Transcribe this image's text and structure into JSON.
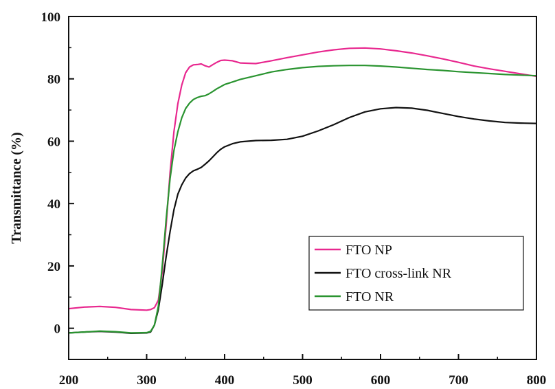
{
  "chart_data": {
    "type": "line",
    "title": "",
    "xlabel": "",
    "ylabel": "Transmittance (%)",
    "xlim": [
      200,
      800
    ],
    "ylim": [
      -10,
      100
    ],
    "xticks": [
      200,
      300,
      400,
      500,
      600,
      700,
      800
    ],
    "yticks": [
      0,
      20,
      40,
      60,
      80,
      100
    ],
    "grid": false,
    "legend_position": "bottom-right",
    "series": [
      {
        "name": "FTO NP",
        "color": "#e8288f",
        "x": [
          200,
          220,
          240,
          260,
          280,
          300,
          305,
          310,
          315,
          320,
          325,
          330,
          335,
          340,
          345,
          350,
          355,
          360,
          365,
          370,
          375,
          380,
          385,
          390,
          395,
          400,
          410,
          420,
          440,
          460,
          480,
          500,
          520,
          540,
          560,
          580,
          600,
          620,
          640,
          660,
          680,
          700,
          720,
          740,
          760,
          780,
          800
        ],
        "y": [
          6.3,
          6.8,
          7.0,
          6.7,
          6.0,
          5.8,
          6.0,
          6.6,
          9.0,
          18,
          33,
          50,
          63,
          72,
          78,
          82,
          83.8,
          84.5,
          84.6,
          84.8,
          84.2,
          83.8,
          84.6,
          85.3,
          85.9,
          86.0,
          85.8,
          85.1,
          84.9,
          85.8,
          86.8,
          87.7,
          88.6,
          89.3,
          89.8,
          89.9,
          89.6,
          89.0,
          88.3,
          87.4,
          86.4,
          85.3,
          84.1,
          83.2,
          82.4,
          81.6,
          80.8
        ]
      },
      {
        "name": "FTO cross-link NR",
        "color": "#111111",
        "x": [
          200,
          220,
          240,
          260,
          280,
          300,
          305,
          310,
          315,
          320,
          325,
          330,
          335,
          340,
          345,
          350,
          355,
          360,
          365,
          370,
          375,
          380,
          385,
          390,
          395,
          400,
          410,
          420,
          440,
          460,
          480,
          500,
          520,
          540,
          560,
          580,
          600,
          620,
          640,
          660,
          680,
          700,
          720,
          740,
          760,
          780,
          800
        ],
        "y": [
          -1.5,
          -1.2,
          -1.0,
          -1.2,
          -1.6,
          -1.5,
          -1.2,
          1.0,
          6.0,
          14,
          23,
          31,
          38,
          43,
          46,
          48.2,
          49.6,
          50.5,
          51.0,
          51.6,
          52.6,
          53.7,
          55.0,
          56.3,
          57.4,
          58.2,
          59.2,
          59.8,
          60.2,
          60.3,
          60.6,
          61.6,
          63.3,
          65.3,
          67.6,
          69.4,
          70.4,
          70.8,
          70.6,
          69.9,
          68.9,
          67.9,
          67.1,
          66.5,
          66.0,
          65.8,
          65.7
        ]
      },
      {
        "name": "FTO NR",
        "color": "#2a9430",
        "x": [
          200,
          220,
          240,
          260,
          280,
          300,
          305,
          310,
          315,
          320,
          325,
          330,
          335,
          340,
          345,
          350,
          355,
          360,
          365,
          370,
          375,
          380,
          385,
          390,
          395,
          400,
          410,
          420,
          440,
          460,
          480,
          500,
          520,
          540,
          560,
          580,
          600,
          620,
          640,
          660,
          680,
          700,
          720,
          740,
          760,
          780,
          800
        ],
        "y": [
          -1.5,
          -1.2,
          -0.9,
          -1.1,
          -1.5,
          -1.4,
          -1.0,
          1.0,
          7.0,
          20,
          35,
          48,
          57,
          63,
          67.5,
          70.5,
          72.2,
          73.4,
          74.0,
          74.4,
          74.6,
          75.2,
          76.0,
          76.8,
          77.5,
          78.2,
          79.0,
          79.8,
          81.0,
          82.2,
          83.0,
          83.6,
          84.0,
          84.2,
          84.3,
          84.3,
          84.1,
          83.8,
          83.4,
          83.0,
          82.7,
          82.3,
          82.0,
          81.7,
          81.4,
          81.2,
          81.0
        ]
      }
    ]
  }
}
